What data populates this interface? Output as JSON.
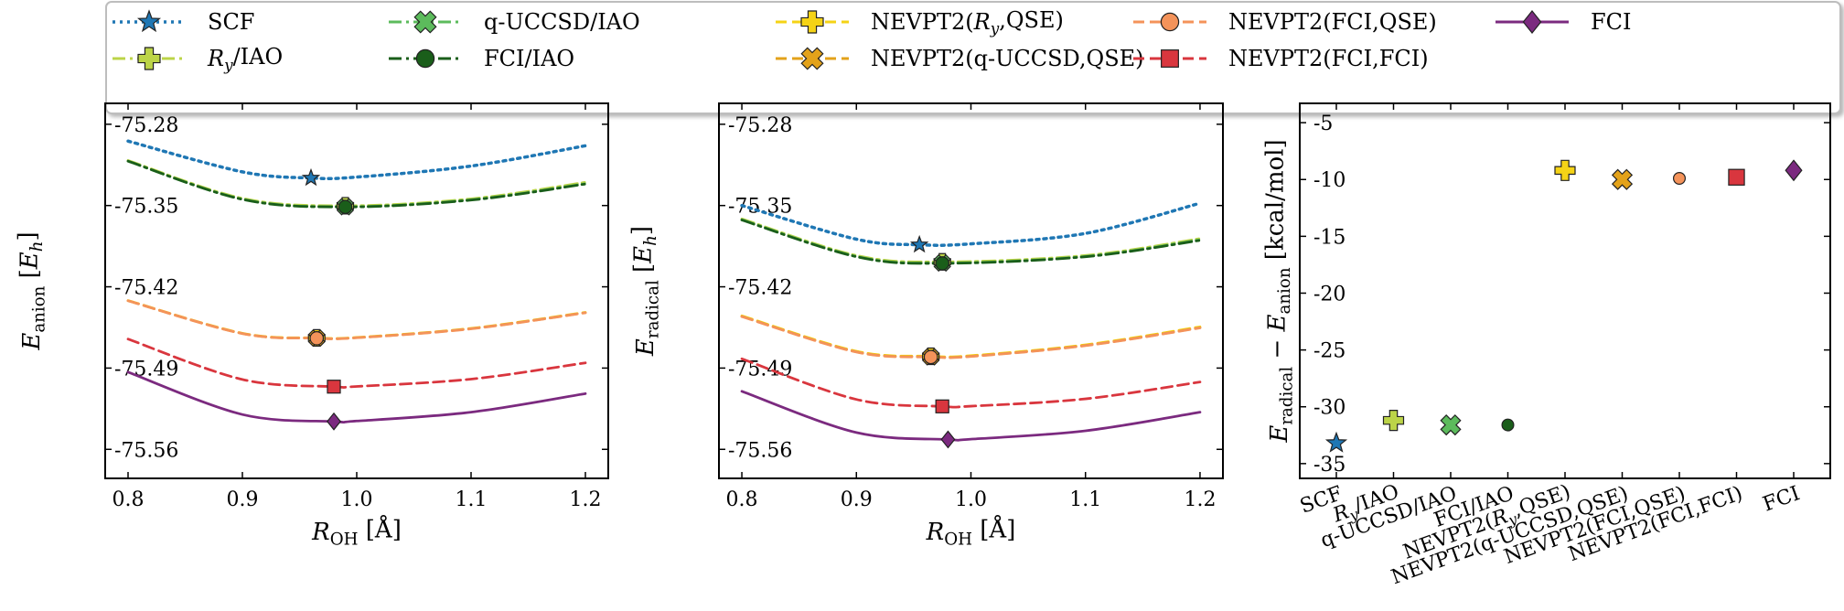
{
  "legend": {
    "placement": "top",
    "entries": [
      {
        "key": "scf",
        "label": "SCF",
        "color": "#1f77b4",
        "marker": "star",
        "style": "dotted"
      },
      {
        "key": "ry_iao",
        "label": "R_y/IAO",
        "color": "#bcd448",
        "marker": "plus",
        "style": "dashdot"
      },
      {
        "key": "quccsd_iao",
        "label": "q-UCCSD/IAO",
        "color": "#5cbb5c",
        "marker": "x",
        "style": "dashdot"
      },
      {
        "key": "fci_iao",
        "label": "FCI/IAO",
        "color": "#1a5e1a",
        "marker": "circle",
        "style": "dashdot"
      },
      {
        "key": "nevpt2_ry_qse",
        "label": "NEVPT2(R_y,QSE)",
        "color": "#f5d316",
        "marker": "plus",
        "style": "dashed"
      },
      {
        "key": "nevpt2_quccsd_qse",
        "label": "NEVPT2(q-UCCSD,QSE)",
        "color": "#e3a21a",
        "marker": "x",
        "style": "dashed"
      },
      {
        "key": "nevpt2_fci_qse",
        "label": "NEVPT2(FCI,QSE)",
        "color": "#f4935a",
        "marker": "circle",
        "style": "dashed"
      },
      {
        "key": "nevpt2_fci_fci",
        "label": "NEVPT2(FCI,FCI)",
        "color": "#d9363e",
        "marker": "square",
        "style": "dashed"
      },
      {
        "key": "fci",
        "label": "FCI",
        "color": "#7b2a7f",
        "marker": "diamond",
        "style": "solid"
      }
    ]
  },
  "chart_data": [
    {
      "type": "line",
      "xlabel": "R_OH [Å]",
      "ylabel": "E_anion [E_h]",
      "xlim": [
        0.78,
        1.22
      ],
      "ylim": [
        -75.585,
        -75.262
      ],
      "xticks": [
        0.8,
        0.9,
        1.0,
        1.1,
        1.2
      ],
      "yticks": [
        -75.28,
        -75.35,
        -75.42,
        -75.49,
        -75.56
      ],
      "xtick_labels": [
        "0.8",
        "0.9",
        "1.0",
        "1.1",
        "1.2"
      ],
      "ytick_labels": [
        "-75.28",
        "-75.35",
        "-75.42",
        "-75.49",
        "-75.56"
      ],
      "grid": false,
      "series": [
        {
          "key": "scf",
          "x": [
            0.8,
            0.9,
            0.96,
            1.0,
            1.1,
            1.2
          ],
          "y": [
            -75.2945,
            -75.321,
            -75.3263,
            -75.3255,
            -75.316,
            -75.2985
          ],
          "min": {
            "x": 0.96,
            "y": -75.3263
          }
        },
        {
          "key": "ry_iao",
          "x": [
            0.8,
            0.9,
            0.99,
            1.1,
            1.2
          ],
          "y": [
            -75.3112,
            -75.3438,
            -75.3502,
            -75.3442,
            -75.33
          ],
          "min": {
            "x": 0.99,
            "y": -75.3502
          }
        },
        {
          "key": "quccsd_iao",
          "x": [
            0.8,
            0.9,
            0.99,
            1.1,
            1.2
          ],
          "y": [
            -75.3118,
            -75.3445,
            -75.351,
            -75.345,
            -75.3312
          ],
          "min": {
            "x": 0.99,
            "y": -75.351
          }
        },
        {
          "key": "fci_iao",
          "x": [
            0.8,
            0.9,
            0.99,
            1.1,
            1.2
          ],
          "y": [
            -75.3118,
            -75.3447,
            -75.3512,
            -75.3453,
            -75.3315
          ],
          "min": {
            "x": 0.99,
            "y": -75.3512
          }
        },
        {
          "key": "nevpt2_ry_qse",
          "x": [
            0.8,
            0.9,
            0.965,
            1.0,
            1.1,
            1.2
          ],
          "y": [
            -75.4318,
            -75.46,
            -75.464,
            -75.4636,
            -75.4558,
            -75.442
          ],
          "min": {
            "x": 0.965,
            "y": -75.464
          }
        },
        {
          "key": "nevpt2_quccsd_qse",
          "x": [
            0.8,
            0.9,
            0.965,
            1.0,
            1.1,
            1.2
          ],
          "y": [
            -75.432,
            -75.4602,
            -75.4642,
            -75.4638,
            -75.456,
            -75.4423
          ],
          "min": {
            "x": 0.965,
            "y": -75.4642
          }
        },
        {
          "key": "nevpt2_fci_qse",
          "x": [
            0.8,
            0.9,
            0.965,
            1.0,
            1.1,
            1.2
          ],
          "y": [
            -75.432,
            -75.4603,
            -75.4643,
            -75.4639,
            -75.4562,
            -75.4424
          ],
          "min": {
            "x": 0.965,
            "y": -75.4643
          }
        },
        {
          "key": "nevpt2_fci_fci",
          "x": [
            0.8,
            0.9,
            0.98,
            1.0,
            1.1,
            1.2
          ],
          "y": [
            -75.465,
            -75.4998,
            -75.506,
            -75.5058,
            -75.4995,
            -75.4855
          ],
          "min": {
            "x": 0.98,
            "y": -75.506
          }
        },
        {
          "key": "fci",
          "x": [
            0.8,
            0.9,
            0.98,
            1.0,
            1.1,
            1.2
          ],
          "y": [
            -75.4935,
            -75.53,
            -75.536,
            -75.5356,
            -75.528,
            -75.512
          ],
          "min": {
            "x": 0.98,
            "y": -75.536
          }
        }
      ]
    },
    {
      "type": "line",
      "xlabel": "R_OH [Å]",
      "ylabel": "E_radical [E_h]",
      "xlim": [
        0.78,
        1.22
      ],
      "ylim": [
        -75.585,
        -75.262
      ],
      "xticks": [
        0.8,
        0.9,
        1.0,
        1.1,
        1.2
      ],
      "yticks": [
        -75.28,
        -75.35,
        -75.42,
        -75.49,
        -75.56
      ],
      "xtick_labels": [
        "0.8",
        "0.9",
        "1.0",
        "1.1",
        "1.2"
      ],
      "ytick_labels": [
        "-75.28",
        "-75.35",
        "-75.42",
        "-75.49",
        "-75.56"
      ],
      "grid": false,
      "series": [
        {
          "key": "scf",
          "x": [
            0.8,
            0.9,
            0.955,
            1.0,
            1.1,
            1.2
          ],
          "y": [
            -75.35,
            -75.379,
            -75.3838,
            -75.383,
            -75.374,
            -75.348
          ],
          "min": {
            "x": 0.955,
            "y": -75.3838
          }
        },
        {
          "key": "ry_iao",
          "x": [
            0.8,
            0.9,
            0.975,
            1.1,
            1.2
          ],
          "y": [
            -75.3615,
            -75.393,
            -75.3985,
            -75.393,
            -75.3785
          ],
          "min": {
            "x": 0.975,
            "y": -75.3985
          }
        },
        {
          "key": "quccsd_iao",
          "x": [
            0.8,
            0.9,
            0.975,
            1.1,
            1.2
          ],
          "y": [
            -75.3622,
            -75.3938,
            -75.3995,
            -75.3938,
            -75.3795
          ],
          "min": {
            "x": 0.975,
            "y": -75.3995
          }
        },
        {
          "key": "fci_iao",
          "x": [
            0.8,
            0.9,
            0.975,
            1.1,
            1.2
          ],
          "y": [
            -75.3625,
            -75.3941,
            -75.3998,
            -75.3941,
            -75.38
          ],
          "min": {
            "x": 0.975,
            "y": -75.3998
          }
        },
        {
          "key": "nevpt2_ry_qse",
          "x": [
            0.8,
            0.9,
            0.965,
            1.0,
            1.1,
            1.2
          ],
          "y": [
            -75.445,
            -75.4755,
            -75.4798,
            -75.4793,
            -75.47,
            -75.4545
          ],
          "min": {
            "x": 0.965,
            "y": -75.4798
          }
        },
        {
          "key": "nevpt2_quccsd_qse",
          "x": [
            0.8,
            0.9,
            0.965,
            1.0,
            1.1,
            1.2
          ],
          "y": [
            -75.4455,
            -75.476,
            -75.4803,
            -75.4798,
            -75.4705,
            -75.4552
          ],
          "min": {
            "x": 0.965,
            "y": -75.4803
          }
        },
        {
          "key": "nevpt2_fci_qse",
          "x": [
            0.8,
            0.9,
            0.965,
            1.0,
            1.1,
            1.2
          ],
          "y": [
            -75.4457,
            -75.4762,
            -75.4805,
            -75.48,
            -75.4707,
            -75.4554
          ],
          "min": {
            "x": 0.965,
            "y": -75.4805
          }
        },
        {
          "key": "nevpt2_fci_fci",
          "x": [
            0.8,
            0.9,
            0.975,
            1.0,
            1.1,
            1.2
          ],
          "y": [
            -75.482,
            -75.517,
            -75.523,
            -75.5228,
            -75.5165,
            -75.502
          ],
          "min": {
            "x": 0.975,
            "y": -75.523
          }
        },
        {
          "key": "fci",
          "x": [
            0.8,
            0.9,
            0.98,
            1.0,
            1.1,
            1.2
          ],
          "y": [
            -75.51,
            -75.5455,
            -75.5515,
            -75.5512,
            -75.544,
            -75.528
          ],
          "min": {
            "x": 0.98,
            "y": -75.5515
          }
        }
      ]
    },
    {
      "type": "scatter",
      "xlabel": "",
      "ylabel": "E_radical − E_anion [kcal/mol]",
      "ylim": [
        -36.3,
        -3.3
      ],
      "yticks": [
        -5,
        -10,
        -15,
        -20,
        -25,
        -30,
        -35
      ],
      "ytick_labels": [
        "-5",
        "-10",
        "-15",
        "-20",
        "-25",
        "-30",
        "-35"
      ],
      "grid": false,
      "categories": [
        "SCF",
        "R_y/IAO",
        "q-UCCSD/IAO",
        "FCI/IAO",
        "NEVPT2(R_y,QSE)",
        "NEVPT2(q-UCCSD,QSE)",
        "NEVPT2(FCI,QSE)",
        "NEVPT2(FCI,FCI)",
        "FCI"
      ],
      "keys": [
        "scf",
        "ry_iao",
        "quccsd_iao",
        "fci_iao",
        "nevpt2_ry_qse",
        "nevpt2_quccsd_qse",
        "nevpt2_fci_qse",
        "nevpt2_fci_fci",
        "fci"
      ],
      "values": [
        -33.2,
        -31.2,
        -31.6,
        -31.6,
        -9.2,
        -10.0,
        -9.9,
        -9.8,
        -9.2
      ]
    }
  ]
}
